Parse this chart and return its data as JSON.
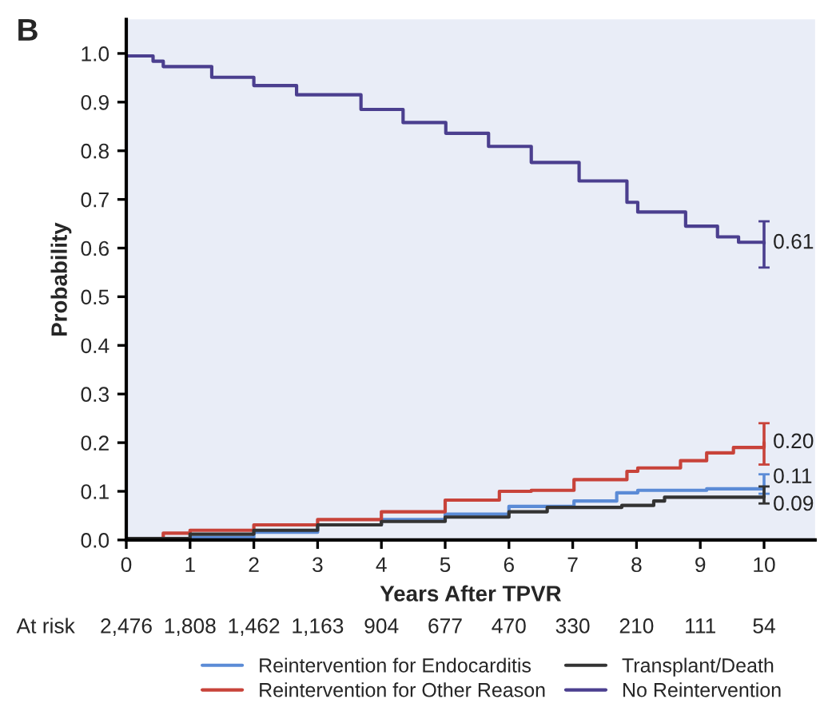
{
  "chart_data": {
    "type": "step",
    "title": "B",
    "xlabel": "Years After TPVR",
    "ylabel": "Probability",
    "xlim": [
      0,
      10.8
    ],
    "ylim": [
      0,
      1.07
    ],
    "xticks": [
      0,
      1,
      2,
      3,
      4,
      5,
      6,
      7,
      8,
      9,
      10
    ],
    "yticks": [
      {
        "value": 0,
        "label": "0.0"
      },
      0.1,
      0.2,
      0.3,
      0.4,
      0.5,
      0.6,
      0.7,
      0.8,
      0.9,
      {
        "value": 1,
        "label": "1.0"
      }
    ],
    "grid": false,
    "legend": "bottom",
    "annotations": [
      "At risk",
      "2,476",
      "1,808",
      "1,462",
      "1,163",
      "904",
      "677",
      "470",
      "330",
      "210",
      "111",
      "54"
    ],
    "series": [
      {
        "name": "Reintervention for Endocarditis",
        "color": "#5b8bd6",
        "x": [
          0,
          1,
          2,
          3,
          4,
          5,
          6,
          7.02,
          7.69,
          8.02,
          9.1,
          10
        ],
        "values": [
          0,
          0.005,
          0.016,
          0.031,
          0.042,
          0.053,
          0.069,
          0.08,
          0.097,
          0.102,
          0.105,
          0.11
        ],
        "errors": [
          null,
          null,
          null,
          null,
          null,
          null,
          null,
          null,
          null,
          null,
          null,
          [
            0.095,
            0.135
          ]
        ],
        "value_labels": [
          null,
          null,
          null,
          null,
          null,
          null,
          null,
          null,
          null,
          null,
          null,
          "0.11"
        ]
      },
      {
        "name": "Reintervention for Other Reason",
        "color": "#c8433a",
        "x": [
          0,
          0.58,
          1,
          2,
          3,
          4,
          5,
          5.85,
          6.35,
          7.02,
          7.85,
          8.02,
          8.69,
          9.1,
          9.52,
          10
        ],
        "values": [
          0.003,
          0.014,
          0.02,
          0.031,
          0.042,
          0.058,
          0.082,
          0.1,
          0.102,
          0.124,
          0.141,
          0.148,
          0.163,
          0.179,
          0.19,
          0.2
        ],
        "errors": [
          null,
          null,
          null,
          null,
          null,
          null,
          null,
          null,
          null,
          null,
          null,
          null,
          null,
          null,
          null,
          [
            0.155,
            0.24
          ]
        ],
        "value_labels": [
          null,
          null,
          null,
          null,
          null,
          null,
          null,
          null,
          null,
          null,
          null,
          null,
          null,
          null,
          null,
          "0.20"
        ]
      },
      {
        "name": "Transplant/Death",
        "color": "#333333",
        "x": [
          0,
          1,
          2,
          3,
          4,
          5,
          6,
          6.6,
          7.77,
          8.27,
          8.44,
          10
        ],
        "values": [
          0.003,
          0.012,
          0.02,
          0.031,
          0.038,
          0.047,
          0.058,
          0.067,
          0.071,
          0.08,
          0.088,
          0.09
        ],
        "errors": [
          null,
          null,
          null,
          null,
          null,
          null,
          null,
          null,
          null,
          null,
          null,
          [
            0.075,
            0.11
          ]
        ],
        "value_labels": [
          null,
          null,
          null,
          null,
          null,
          null,
          null,
          null,
          null,
          null,
          null,
          "0.09"
        ]
      },
      {
        "name": "No Reintervention",
        "color": "#4b3f8f",
        "x": [
          0,
          0.42,
          0.58,
          1.34,
          2,
          2.67,
          3.68,
          4.34,
          5.01,
          5.68,
          6.35,
          7.1,
          7.85,
          8.02,
          8.77,
          9.27,
          9.6,
          10
        ],
        "values": [
          0.995,
          0.984,
          0.973,
          0.951,
          0.934,
          0.915,
          0.885,
          0.858,
          0.836,
          0.809,
          0.776,
          0.738,
          0.694,
          0.674,
          0.645,
          0.623,
          0.612,
          0.61
        ],
        "errors": [
          null,
          null,
          null,
          null,
          null,
          null,
          null,
          null,
          null,
          null,
          null,
          null,
          null,
          null,
          null,
          null,
          null,
          [
            0.56,
            0.655
          ]
        ],
        "value_labels": [
          null,
          null,
          null,
          null,
          null,
          null,
          null,
          null,
          null,
          null,
          null,
          null,
          null,
          null,
          null,
          null,
          null,
          "0.61"
        ]
      }
    ]
  }
}
